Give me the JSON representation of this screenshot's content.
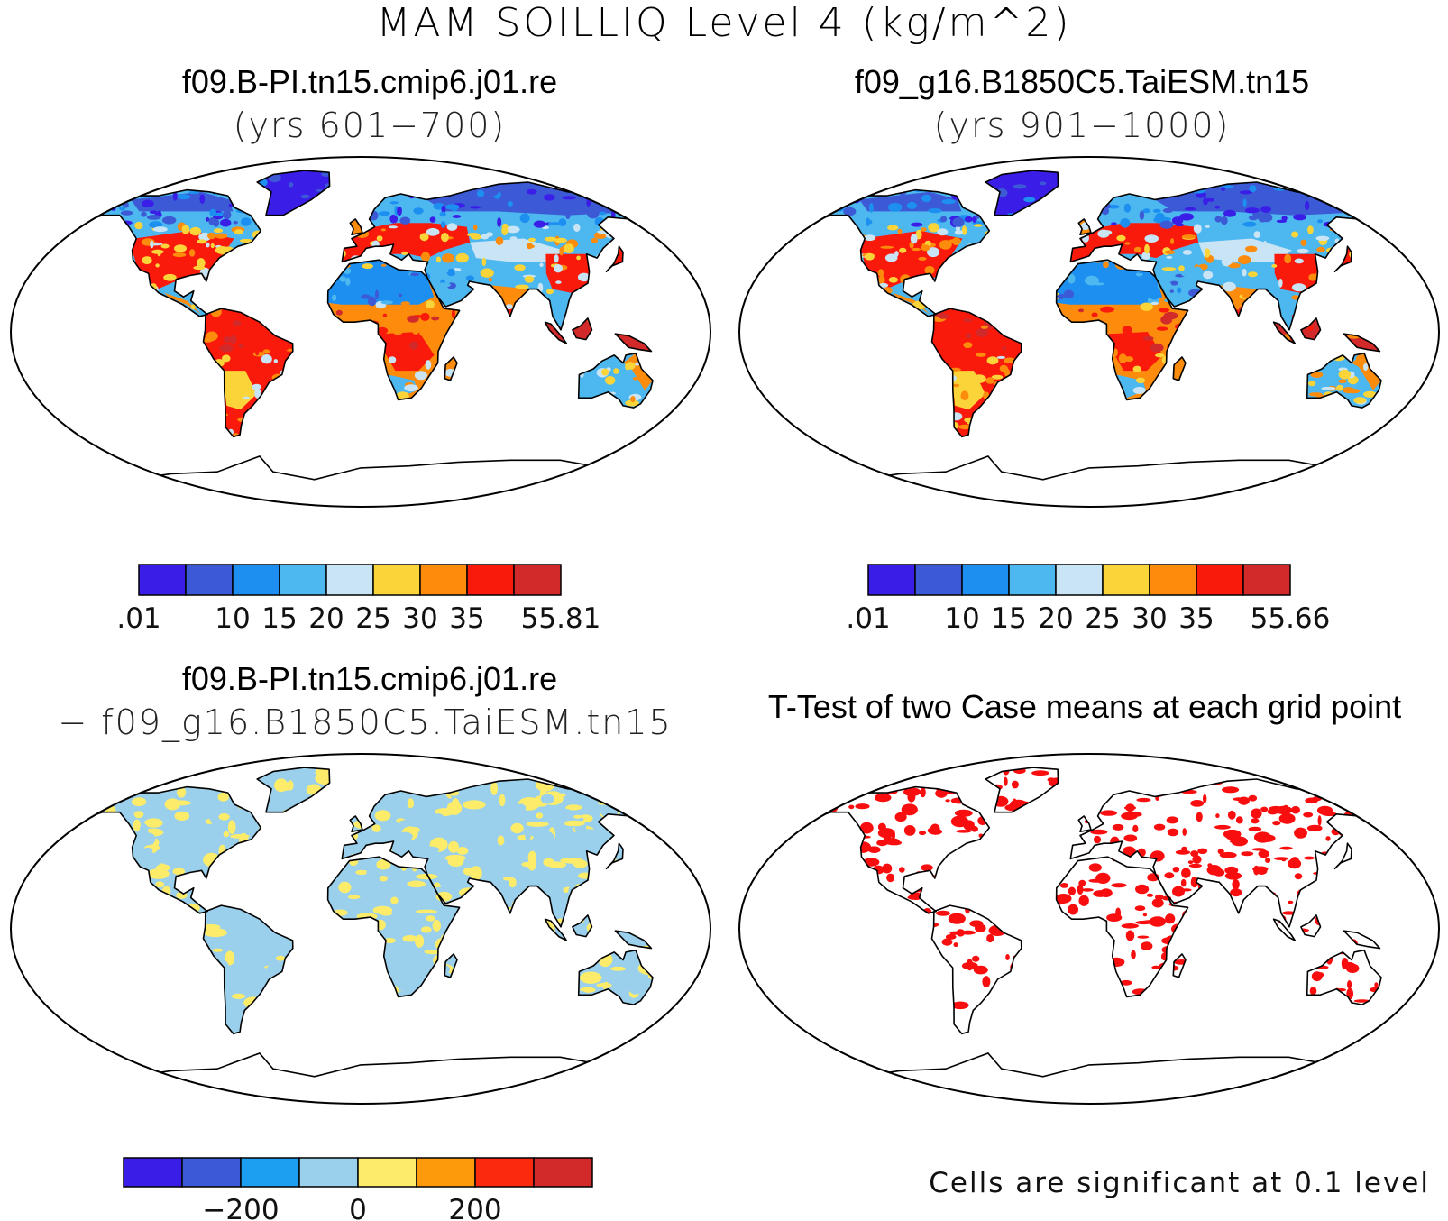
{
  "title": "MAM SOILLIQ Level 4 (kg/m^2)",
  "panels": [
    {
      "id": "case1",
      "title": "f09.B-PI.tn15.cmip6.j01.re",
      "subtitle": "(yrs 601−700)",
      "colorbar": {
        "colors": [
          "#3a1ee8",
          "#3c5ad6",
          "#1c8ff0",
          "#4db7ef",
          "#c8e4f5",
          "#fbd43a",
          "#fd8c0c",
          "#fa1a0c",
          "#d22a2a"
        ],
        "labels": [
          ".01",
          "",
          "10",
          "15",
          "20",
          "25",
          "30",
          "35",
          "",
          "55.81"
        ]
      }
    },
    {
      "id": "case2",
      "title": "f09_g16.B1850C5.TaiESM.tn15",
      "subtitle": "(yrs 901−1000)",
      "colorbar": {
        "colors": [
          "#3a1ee8",
          "#3c5ad6",
          "#1c8ff0",
          "#4db7ef",
          "#c8e4f5",
          "#fbd43a",
          "#fd8c0c",
          "#fa1a0c",
          "#d22a2a"
        ],
        "labels": [
          ".01",
          "",
          "10",
          "15",
          "20",
          "25",
          "30",
          "35",
          "",
          "55.66"
        ]
      }
    },
    {
      "id": "difference",
      "title": "f09.B-PI.tn15.cmip6.j01.re",
      "subtitle": "− f09_g16.B1850C5.TaiESM.tn15",
      "colorbar": {
        "colors": [
          "#3a1ee8",
          "#3c5ad6",
          "#1c9ff0",
          "#9ad0ec",
          "#fdec6a",
          "#fd9a0c",
          "#fb2a0c",
          "#d22a2a"
        ],
        "labels": [
          "",
          "",
          "−200",
          "",
          "0",
          "",
          "200",
          "",
          ""
        ]
      }
    },
    {
      "id": "ttest",
      "title": "T-Test of two Case means at each grid point",
      "footnote": "Cells are significant at 0.1 level",
      "colorbar": {
        "colors": [
          "#f80e0e"
        ]
      }
    }
  ]
}
